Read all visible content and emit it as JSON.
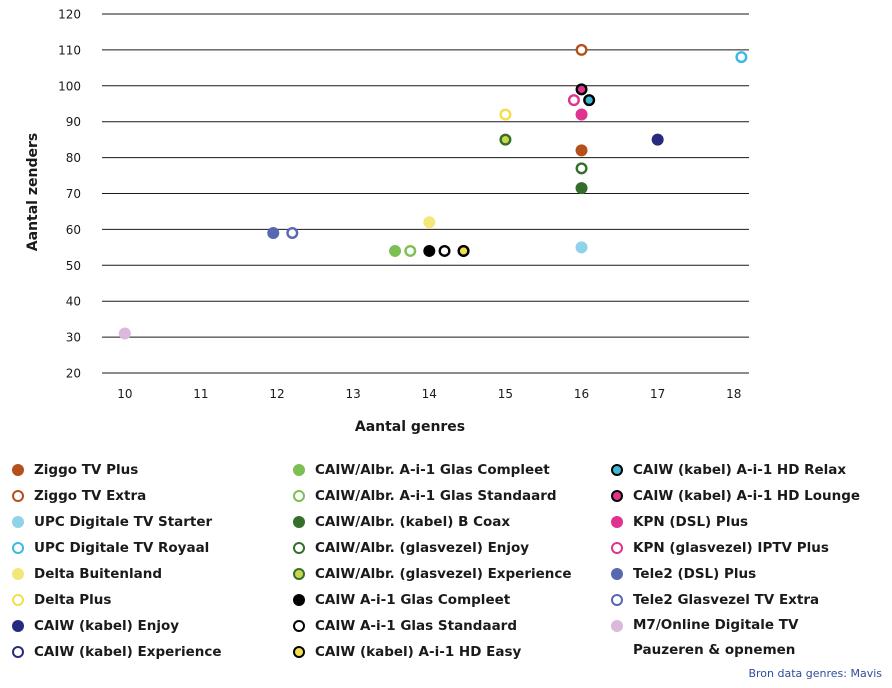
{
  "chart_data": {
    "type": "scatter",
    "xlabel": "Aantal genres",
    "ylabel": "Aantal zenders",
    "xlim": [
      9.7,
      18.2
    ],
    "ylim": [
      20,
      120
    ],
    "xticks": [
      10,
      11,
      12,
      13,
      14,
      15,
      16,
      17,
      18
    ],
    "yticks": [
      20,
      30,
      40,
      50,
      60,
      70,
      80,
      90,
      100,
      110,
      120
    ],
    "grid": "horizontal",
    "legend_position": "bottom",
    "series": [
      {
        "name": "Ziggo TV Plus",
        "style": "filled",
        "color": "#b5501c",
        "points": [
          [
            16,
            82
          ]
        ]
      },
      {
        "name": "Ziggo TV Extra",
        "style": "open",
        "color": "#b5501c",
        "points": [
          [
            16,
            110
          ]
        ]
      },
      {
        "name": "UPC Digitale TV Starter",
        "style": "filled",
        "color": "#8fd3ea",
        "points": [
          [
            16,
            55
          ]
        ]
      },
      {
        "name": "UPC Digitale TV Royaal",
        "style": "open",
        "color": "#3cb8e6",
        "points": [
          [
            18.1,
            108
          ]
        ]
      },
      {
        "name": "Delta Buitenland",
        "style": "filled",
        "color": "#f5e67a",
        "points": [
          [
            14,
            62
          ]
        ]
      },
      {
        "name": "Delta Plus",
        "style": "open",
        "color": "#f1e04a",
        "points": [
          [
            15,
            92
          ]
        ]
      },
      {
        "name": "CAIW (kabel) Enjoy",
        "style": "filled",
        "color": "#272a7e",
        "points": [
          [
            17,
            85
          ]
        ]
      },
      {
        "name": "CAIW (kabel) Experience",
        "style": "open",
        "color": "#272a7e",
        "points": []
      },
      {
        "name": "CAIW/Albr. A-i-1 Glas Compleet",
        "style": "filled",
        "color": "#7cbf52",
        "points": [
          [
            13.55,
            54
          ]
        ]
      },
      {
        "name": "CAIW/Albr. A-i-1 Glas Standaard",
        "style": "open",
        "color": "#7cbf52",
        "points": [
          [
            13.75,
            54
          ]
        ]
      },
      {
        "name": "CAIW/Albr. (kabel) B Coax",
        "style": "filled",
        "color": "#356e2b",
        "points": [
          [
            16,
            71.5
          ]
        ]
      },
      {
        "name": "CAIW/Albr. (glasvezel) Enjoy",
        "style": "open",
        "color": "#356e2b",
        "points": [
          [
            16,
            77
          ]
        ]
      },
      {
        "name": "CAIW/Albr. (glasvezel) Experience",
        "style": "ring",
        "color": "#356e2b",
        "fill": "#c8d64a",
        "points": [
          [
            15,
            85
          ]
        ]
      },
      {
        "name": "CAIW A-i-1 Glas Compleet",
        "style": "filled",
        "color": "#000000",
        "points": [
          [
            14,
            54
          ]
        ]
      },
      {
        "name": "CAIW A-i-1 Glas Standaard",
        "style": "open",
        "color": "#000000",
        "points": [
          [
            14.2,
            54
          ],
          [
            14.45,
            54
          ]
        ]
      },
      {
        "name": "CAIW (kabel) A-i-1 HD Easy",
        "style": "ring",
        "color": "#000000",
        "fill": "#f1e04a",
        "points": [
          [
            14.45,
            54
          ]
        ]
      },
      {
        "name": "CAIW (kabel) A-i-1 HD Relax",
        "style": "ring",
        "color": "#000000",
        "fill": "#3cb8d6",
        "points": [
          [
            16.1,
            96
          ]
        ]
      },
      {
        "name": "CAIW (kabel) A-i-1 HD Lounge",
        "style": "ring",
        "color": "#000000",
        "fill": "#e0338f",
        "points": [
          [
            16,
            99
          ]
        ]
      },
      {
        "name": "KPN (DSL) Plus",
        "style": "filled",
        "color": "#e0338f",
        "points": [
          [
            16,
            92
          ]
        ]
      },
      {
        "name": "KPN (glasvezel) IPTV Plus",
        "style": "open",
        "color": "#e0338f",
        "points": [
          [
            15.9,
            96
          ]
        ]
      },
      {
        "name": "Tele2 (DSL) Plus",
        "style": "filled",
        "color": "#5568b0",
        "points": [
          [
            11.95,
            59
          ]
        ]
      },
      {
        "name": "Tele2 Glasvezel TV Extra",
        "style": "open",
        "color": "#5568b0",
        "points": [
          [
            12.2,
            59
          ]
        ]
      },
      {
        "name": "M7/Online Digitale TV Pauzeren & opnemen",
        "style": "filled",
        "color": "#dbb8dc",
        "points": [
          [
            10,
            31
          ]
        ]
      }
    ],
    "source_note": "Bron data genres: Mavis"
  },
  "legend": {
    "columns": [
      [
        0,
        1,
        2,
        3,
        4,
        5,
        6,
        7
      ],
      [
        8,
        9,
        10,
        11,
        12,
        13,
        14,
        15
      ],
      [
        16,
        17,
        18,
        19,
        20,
        21,
        22
      ]
    ]
  }
}
